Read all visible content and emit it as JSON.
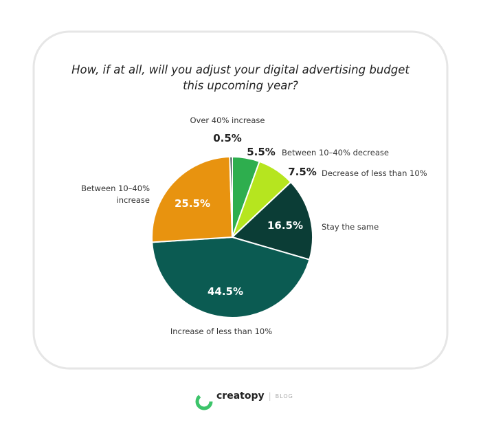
{
  "chart_data": {
    "type": "pie",
    "title": "How, if at all, will you adjust your digital advertising budget this upcoming year?",
    "categories": [
      "Between 10–40% decrease",
      "Decrease of less than 10%",
      "Stay the same",
      "Increase of less than 10%",
      "Between 10–40% increase",
      "Over 40% increase"
    ],
    "values": [
      5.5,
      7.5,
      16.5,
      44.5,
      25.5,
      0.5
    ],
    "value_labels": [
      "5.5%",
      "7.5%",
      "16.5%",
      "44.5%",
      "25.5%",
      "0.5%"
    ],
    "colors": [
      "#2eae4e",
      "#b6e51f",
      "#0b3d36",
      "#0b5b52",
      "#e8930f",
      "#0f2b27"
    ]
  },
  "footer": {
    "brand": "creatopy",
    "section": "BLOG"
  }
}
